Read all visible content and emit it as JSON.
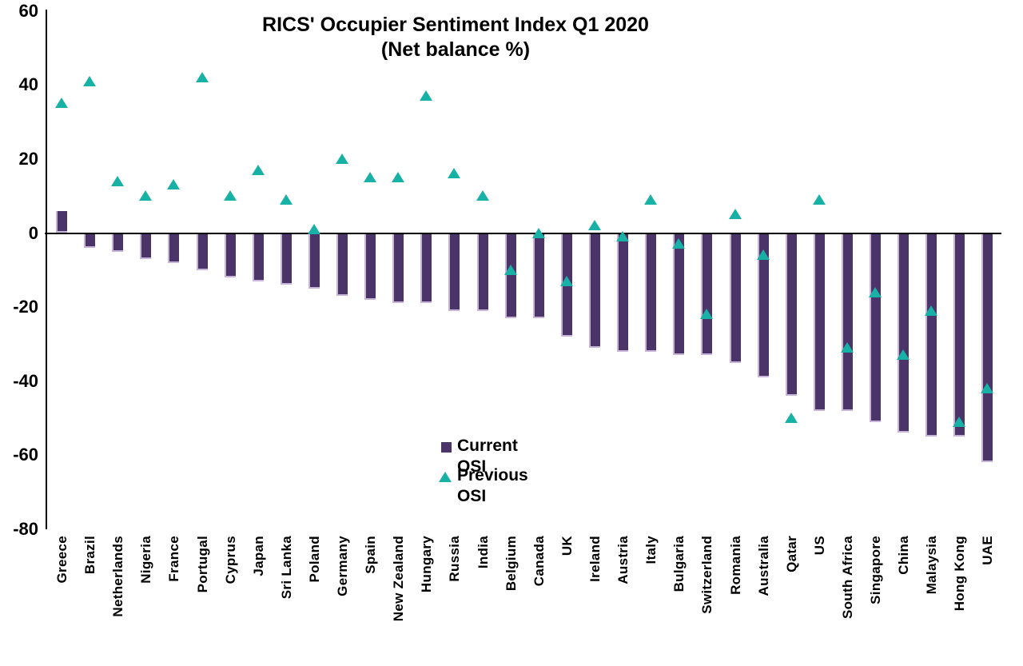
{
  "chart_data": {
    "type": "bar",
    "title": "RICS' Occupier Sentiment Index Q1 2020",
    "subtitle": "(Net balance %)",
    "categories": [
      "Greece",
      "Brazil",
      "Netherlands",
      "Nigeria",
      "France",
      "Portugal",
      "Cyprus",
      "Japan",
      "Sri Lanka",
      "Poland",
      "Germany",
      "Spain",
      "New Zealand",
      "Hungary",
      "Russia",
      "India",
      "Belgium",
      "Canada",
      "UK",
      "Ireland",
      "Austria",
      "Italy",
      "Bulgaria",
      "Switzerland",
      "Romania",
      "Australia",
      "Qatar",
      "US",
      "South Africa",
      "Singapore",
      "China",
      "Malaysia",
      "Hong Kong",
      "UAE"
    ],
    "series": [
      {
        "name": "Current OSI",
        "type": "bar",
        "color": "#4A3468",
        "values": [
          6,
          -4,
          -5,
          -7,
          -8,
          -10,
          -12,
          -13,
          -14,
          -15,
          -17,
          -18,
          -19,
          -19,
          -21,
          -21,
          -23,
          -23,
          -28,
          -31,
          -32,
          -32,
          -33,
          -33,
          -35,
          -39,
          -44,
          -48,
          -48,
          -51,
          -54,
          -55,
          -55,
          -62
        ]
      },
      {
        "name": "Previous OSI",
        "type": "scatter-triangle",
        "color": "#18B1A6",
        "values": [
          35,
          41,
          14,
          10,
          13,
          42,
          10,
          17,
          9,
          1,
          20,
          15,
          15,
          37,
          16,
          10,
          -10,
          0,
          -13,
          2,
          -1,
          9,
          -3,
          -22,
          5,
          -6,
          -50,
          9,
          -31,
          -16,
          -33,
          -21,
          -51,
          -42
        ]
      }
    ],
    "y_axis": {
      "min": -80,
      "max": 60,
      "step": 20,
      "tick_labels": [
        "60",
        "40",
        "20",
        "0",
        "-20",
        "-40",
        "-60",
        "-80"
      ]
    },
    "grid": false,
    "legend_position": "inside-plot-center-bottom",
    "colors": {
      "bar_fill": "#4A3468",
      "bar_edge_highlight": "#C7B4D8",
      "marker_fill": "#18B1A6",
      "axis_line": "#000000",
      "text": "#000000",
      "background": "#FFFFFF"
    }
  }
}
